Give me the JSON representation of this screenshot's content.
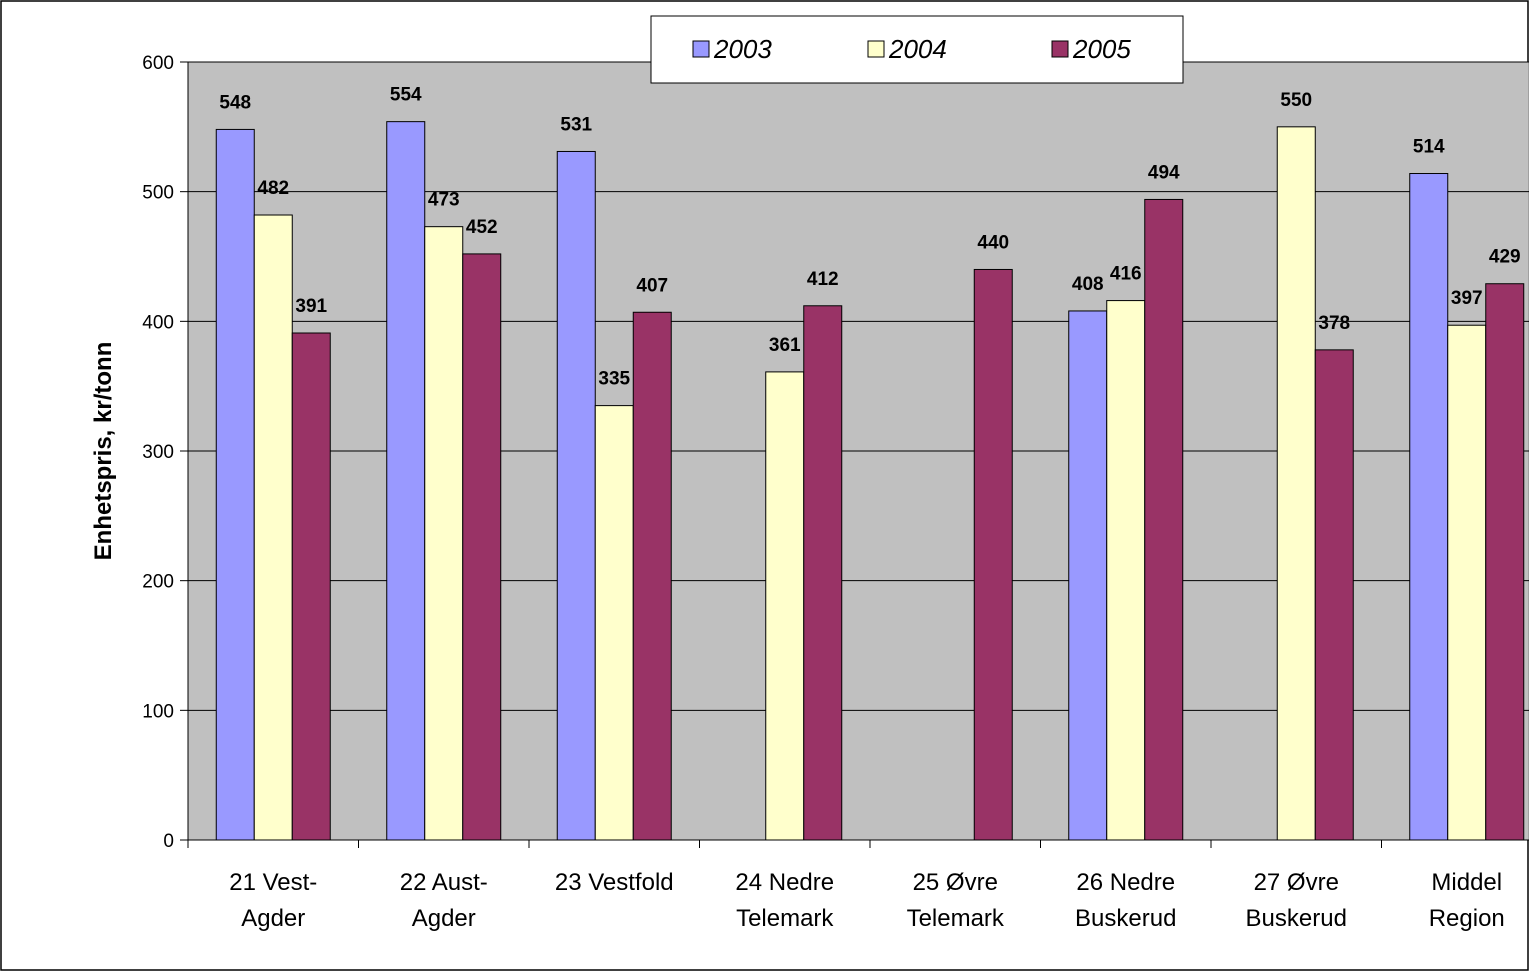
{
  "chart_data": {
    "type": "bar",
    "title": "",
    "xlabel": "",
    "ylabel": "Enhetspris, kr/tonn",
    "ylim": [
      0,
      600
    ],
    "yticks": [
      0,
      100,
      200,
      300,
      400,
      500,
      600
    ],
    "grid": true,
    "legend_position": "top",
    "categories": [
      [
        "21 Vest-",
        "Agder"
      ],
      [
        "22 Aust-",
        "Agder"
      ],
      [
        "23 Vestfold"
      ],
      [
        "24 Nedre",
        "Telemark"
      ],
      [
        "25 Øvre",
        "Telemark"
      ],
      [
        "26 Nedre",
        "Buskerud"
      ],
      [
        "27 Øvre",
        "Buskerud"
      ],
      [
        "Middel",
        "Region"
      ]
    ],
    "series": [
      {
        "name": "2003",
        "color": "#9999FF",
        "values": [
          548,
          554,
          531,
          null,
          null,
          408,
          null,
          514
        ]
      },
      {
        "name": "2004",
        "color": "#FFFFCC",
        "values": [
          482,
          473,
          335,
          361,
          null,
          416,
          550,
          397
        ]
      },
      {
        "name": "2005",
        "color": "#993366",
        "values": [
          391,
          452,
          407,
          412,
          440,
          494,
          378,
          429
        ]
      }
    ],
    "plot_background": "#C0C0C0"
  }
}
